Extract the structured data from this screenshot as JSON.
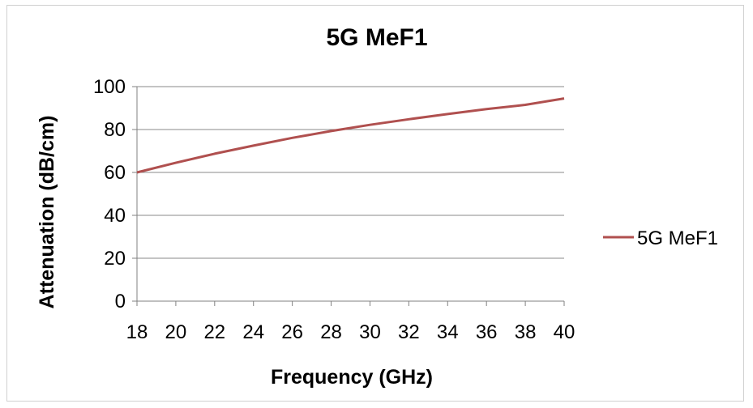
{
  "chart_data": {
    "type": "line",
    "title": "5G MeF1",
    "xlabel": "Frequency (GHz)",
    "ylabel": "Attenuation (dB/cm)",
    "xlim": [
      18,
      40
    ],
    "ylim": [
      0,
      100
    ],
    "xticks": [
      18,
      20,
      22,
      24,
      26,
      28,
      30,
      32,
      34,
      36,
      38,
      40
    ],
    "yticks": [
      0,
      20,
      40,
      60,
      80,
      100
    ],
    "grid": "horizontal",
    "legend": "right",
    "series": [
      {
        "name": "5G MeF1",
        "color": "#b0504f",
        "x": [
          18,
          20,
          22,
          24,
          26,
          28,
          30,
          32,
          34,
          36,
          38,
          40
        ],
        "y": [
          60,
          64.5,
          68.7,
          72.5,
          76.1,
          79.3,
          82.2,
          84.8,
          87.2,
          89.5,
          91.5,
          94.5
        ]
      }
    ]
  }
}
